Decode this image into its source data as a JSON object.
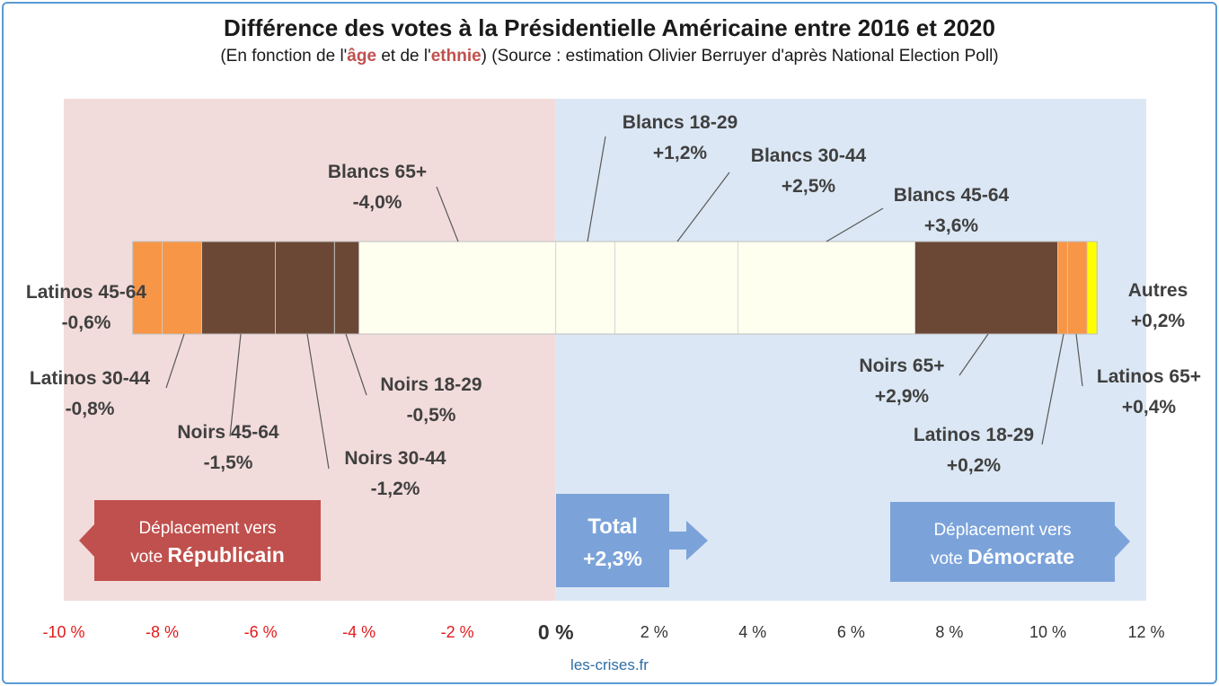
{
  "header": {
    "title": "Différence des votes à la Présidentielle Américaine entre 2016 et 2020",
    "subtitle_prefix": "(En fonction de l'",
    "subtitle_age": "âge",
    "subtitle_mid": " et de l'",
    "subtitle_ethnie": "ethnie",
    "subtitle_suffix": ") (Source : estimation Olivier Berruyer d'après National Election Poll)"
  },
  "footer": {
    "source": "les-crises.fr"
  },
  "colors": {
    "republican_bg": "#f2dcdb",
    "democrat_bg": "#dbe7f4",
    "blancs": "#fffff0",
    "noirs": "#6b4836",
    "latinos": "#f79646",
    "autres": "#ffff00",
    "republican_box": "#c0504d",
    "democrat_box": "#7ba3da",
    "total_box": "#7ba3da",
    "negative_tick": "#e31a1c",
    "label_text": "#404040"
  },
  "chart_data": {
    "type": "bar",
    "orientation": "horizontal-stacked-diverging",
    "title": "Différence des votes à la Présidentielle Américaine entre 2016 et 2020",
    "xlim": [
      -10,
      12
    ],
    "x_ticks": [
      {
        "value": -10,
        "label": "-10 %"
      },
      {
        "value": -8,
        "label": "-8 %"
      },
      {
        "value": -6,
        "label": "-6 %"
      },
      {
        "value": -4,
        "label": "-4 %"
      },
      {
        "value": -2,
        "label": "-2 %"
      },
      {
        "value": 0,
        "label": "0 %"
      },
      {
        "value": 2,
        "label": "2 %"
      },
      {
        "value": 4,
        "label": "4 %"
      },
      {
        "value": 6,
        "label": "6 %"
      },
      {
        "value": 8,
        "label": "8 %"
      },
      {
        "value": 10,
        "label": "10 %"
      },
      {
        "value": 12,
        "label": "12 %"
      }
    ],
    "negative_segments": [
      {
        "name": "Blancs 65+",
        "value": -4.0,
        "value_label": "-4,0%",
        "group": "blancs"
      },
      {
        "name": "Noirs 18-29",
        "value": -0.5,
        "value_label": "-0,5%",
        "group": "noirs"
      },
      {
        "name": "Noirs 30-44",
        "value": -1.2,
        "value_label": "-1,2%",
        "group": "noirs"
      },
      {
        "name": "Noirs 45-64",
        "value": -1.5,
        "value_label": "-1,5%",
        "group": "noirs"
      },
      {
        "name": "Latinos 30-44",
        "value": -0.8,
        "value_label": "-0,8%",
        "group": "latinos"
      },
      {
        "name": "Latinos 45-64",
        "value": -0.6,
        "value_label": "-0,6%",
        "group": "latinos"
      }
    ],
    "positive_segments": [
      {
        "name": "Blancs 18-29",
        "value": 1.2,
        "value_label": "+1,2%",
        "group": "blancs"
      },
      {
        "name": "Blancs 30-44",
        "value": 2.5,
        "value_label": "+2,5%",
        "group": "blancs"
      },
      {
        "name": "Blancs 45-64",
        "value": 3.6,
        "value_label": "+3,6%",
        "group": "blancs"
      },
      {
        "name": "Noirs 65+",
        "value": 2.9,
        "value_label": "+2,9%",
        "group": "noirs"
      },
      {
        "name": "Latinos 18-29",
        "value": 0.2,
        "value_label": "+0,2%",
        "group": "latinos"
      },
      {
        "name": "Latinos 65+",
        "value": 0.4,
        "value_label": "+0,4%",
        "group": "latinos"
      },
      {
        "name": "Autres",
        "value": 0.2,
        "value_label": "+0,2%",
        "group": "autres"
      }
    ],
    "total": {
      "label": "Total",
      "value": 2.3,
      "value_label": "+2,3%"
    },
    "republican_shift": {
      "line1": "Déplacement vers",
      "prefix": "vote ",
      "bold": "Républicain"
    },
    "democrat_shift": {
      "line1": "Déplacement vers",
      "prefix": "vote ",
      "bold": "Démocrate"
    }
  }
}
